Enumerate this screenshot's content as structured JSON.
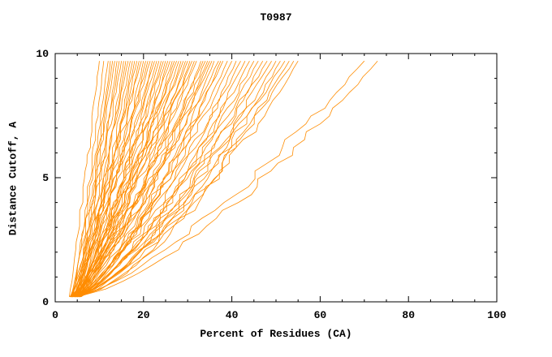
{
  "chart_data": {
    "type": "line",
    "title": "T0987",
    "xlabel": "Percent of Residues (CA)",
    "ylabel": "Distance Cutoff, A",
    "xlim": [
      0,
      100
    ],
    "ylim": [
      0,
      10
    ],
    "xticks": [
      0,
      20,
      40,
      60,
      80,
      100
    ],
    "yticks": [
      0,
      5,
      10
    ],
    "x_minor_step": 5,
    "y_minor_step": 1,
    "line_color": "#ff8c00",
    "axis_color": "#000000",
    "background": "#ffffff",
    "legend": "none",
    "grid": false,
    "curve_y_range": [
      0.2,
      9.7
    ],
    "curves": [
      {
        "x0": 3.2,
        "x1": 10,
        "p": 0.95
      },
      {
        "x0": 4.0,
        "x1": 11,
        "p": 0.9
      },
      {
        "x0": 3.5,
        "x1": 12,
        "p": 0.85
      },
      {
        "x0": 5.0,
        "x1": 12.5,
        "p": 0.9
      },
      {
        "x0": 4.2,
        "x1": 13,
        "p": 0.8
      },
      {
        "x0": 3.8,
        "x1": 13.5,
        "p": 0.95
      },
      {
        "x0": 4.6,
        "x1": 14,
        "p": 0.85
      },
      {
        "x0": 5.2,
        "x1": 14.5,
        "p": 0.9
      },
      {
        "x0": 3.4,
        "x1": 15,
        "p": 0.8
      },
      {
        "x0": 4.8,
        "x1": 15.5,
        "p": 0.75
      },
      {
        "x0": 5.5,
        "x1": 16,
        "p": 0.9
      },
      {
        "x0": 3.6,
        "x1": 16.5,
        "p": 0.85
      },
      {
        "x0": 4.4,
        "x1": 17,
        "p": 0.8
      },
      {
        "x0": 5.8,
        "x1": 17.5,
        "p": 0.9
      },
      {
        "x0": 3.9,
        "x1": 18,
        "p": 0.75
      },
      {
        "x0": 4.1,
        "x1": 18.5,
        "p": 0.85
      },
      {
        "x0": 5.3,
        "x1": 19,
        "p": 0.8
      },
      {
        "x0": 3.7,
        "x1": 19.5,
        "p": 0.9
      },
      {
        "x0": 4.9,
        "x1": 20,
        "p": 0.75
      },
      {
        "x0": 5.6,
        "x1": 20.5,
        "p": 0.85
      },
      {
        "x0": 3.3,
        "x1": 21,
        "p": 0.8
      },
      {
        "x0": 4.3,
        "x1": 21.5,
        "p": 0.9
      },
      {
        "x0": 5.1,
        "x1": 22,
        "p": 0.75
      },
      {
        "x0": 3.8,
        "x1": 22.5,
        "p": 0.85
      },
      {
        "x0": 4.7,
        "x1": 23,
        "p": 0.8
      },
      {
        "x0": 5.9,
        "x1": 23.5,
        "p": 0.9
      },
      {
        "x0": 3.5,
        "x1": 24,
        "p": 0.75
      },
      {
        "x0": 4.5,
        "x1": 24.5,
        "p": 0.85
      },
      {
        "x0": 5.4,
        "x1": 25,
        "p": 0.8
      },
      {
        "x0": 3.9,
        "x1": 25.5,
        "p": 0.7
      },
      {
        "x0": 4.8,
        "x1": 26,
        "p": 0.85
      },
      {
        "x0": 5.7,
        "x1": 26.5,
        "p": 0.8
      },
      {
        "x0": 3.6,
        "x1": 27,
        "p": 0.75
      },
      {
        "x0": 4.2,
        "x1": 27.5,
        "p": 0.85
      },
      {
        "x0": 5.2,
        "x1": 28,
        "p": 0.8
      },
      {
        "x0": 3.4,
        "x1": 28.5,
        "p": 0.7
      },
      {
        "x0": 4.6,
        "x1": 29,
        "p": 0.85
      },
      {
        "x0": 5.5,
        "x1": 29.5,
        "p": 0.75
      },
      {
        "x0": 3.8,
        "x1": 30,
        "p": 0.8
      },
      {
        "x0": 4.4,
        "x1": 30.5,
        "p": 0.7
      },
      {
        "x0": 5.0,
        "x1": 31,
        "p": 0.85
      },
      {
        "x0": 3.7,
        "x1": 31.5,
        "p": 0.75
      },
      {
        "x0": 4.9,
        "x1": 32,
        "p": 0.8
      },
      {
        "x0": 5.6,
        "x1": 33,
        "p": 0.7
      },
      {
        "x0": 3.5,
        "x1": 33.5,
        "p": 0.8
      },
      {
        "x0": 4.3,
        "x1": 34,
        "p": 0.75
      },
      {
        "x0": 5.3,
        "x1": 34.5,
        "p": 0.7
      },
      {
        "x0": 3.9,
        "x1": 35,
        "p": 0.8
      },
      {
        "x0": 4.7,
        "x1": 35.5,
        "p": 0.75
      },
      {
        "x0": 5.8,
        "x1": 36,
        "p": 0.7
      },
      {
        "x0": 3.6,
        "x1": 37,
        "p": 0.8
      },
      {
        "x0": 4.5,
        "x1": 37.5,
        "p": 0.7
      },
      {
        "x0": 5.1,
        "x1": 38,
        "p": 0.75
      },
      {
        "x0": 3.8,
        "x1": 39,
        "p": 0.7
      },
      {
        "x0": 4.6,
        "x1": 40,
        "p": 0.75
      },
      {
        "x0": 5.4,
        "x1": 41,
        "p": 0.7
      },
      {
        "x0": 3.7,
        "x1": 42,
        "p": 0.72
      },
      {
        "x0": 4.8,
        "x1": 43,
        "p": 0.7
      },
      {
        "x0": 5.2,
        "x1": 44,
        "p": 0.72
      },
      {
        "x0": 3.9,
        "x1": 45,
        "p": 0.68
      },
      {
        "x0": 4.4,
        "x1": 46,
        "p": 0.72
      },
      {
        "x0": 5.5,
        "x1": 47,
        "p": 0.68
      },
      {
        "x0": 3.6,
        "x1": 48,
        "p": 0.7
      },
      {
        "x0": 4.7,
        "x1": 49,
        "p": 0.68
      },
      {
        "x0": 5.0,
        "x1": 50,
        "p": 0.7
      },
      {
        "x0": 3.8,
        "x1": 51,
        "p": 0.66
      },
      {
        "x0": 4.5,
        "x1": 52,
        "p": 0.7
      },
      {
        "x0": 5.3,
        "x1": 53,
        "p": 0.66
      },
      {
        "x0": 4.0,
        "x1": 54,
        "p": 0.68
      },
      {
        "x0": 4.9,
        "x1": 55,
        "p": 0.66
      },
      {
        "x0": 4.2,
        "x1": 70,
        "p": 0.72
      },
      {
        "x0": 5.0,
        "x1": 73,
        "p": 0.7
      }
    ]
  }
}
